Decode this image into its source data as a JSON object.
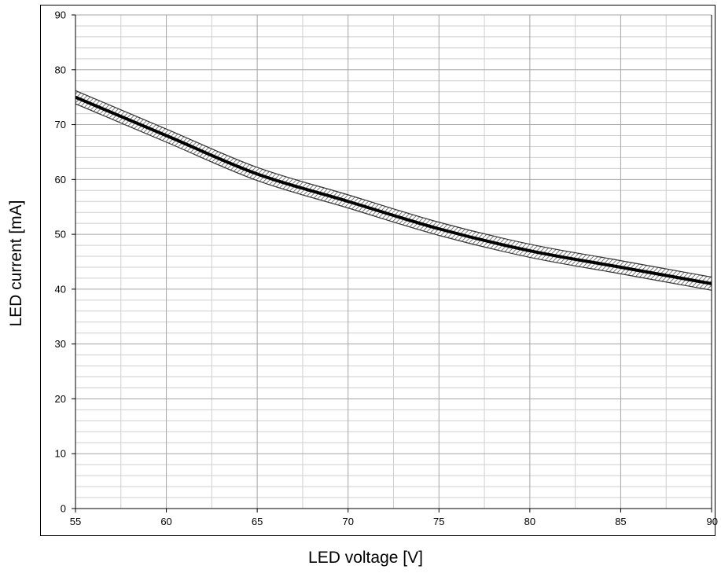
{
  "chart_data": {
    "type": "line",
    "title": "",
    "xlabel": "LED voltage [V]",
    "ylabel": "LED current [mA]",
    "xlim": [
      55,
      90
    ],
    "ylim": [
      0,
      90
    ],
    "x_ticks": [
      "55",
      "60",
      "65",
      "70",
      "75",
      "80",
      "85",
      "90"
    ],
    "y_ticks": [
      "0",
      "10",
      "20",
      "30",
      "40",
      "50",
      "60",
      "70",
      "80",
      "90"
    ],
    "grid": true,
    "legend": "none",
    "series": [
      {
        "x": [
          55,
          60,
          65,
          70,
          75,
          80,
          85,
          90
        ],
        "y": [
          75.0,
          68.0,
          61.0,
          56.0,
          51.0,
          47.0,
          44.0,
          41.0
        ],
        "band": 1.2
      }
    ],
    "colors": {
      "line": "#000000",
      "major_grid": "#a6a6a6",
      "minor_grid": "#cfcfcf",
      "band_hatch": "#555555"
    }
  }
}
